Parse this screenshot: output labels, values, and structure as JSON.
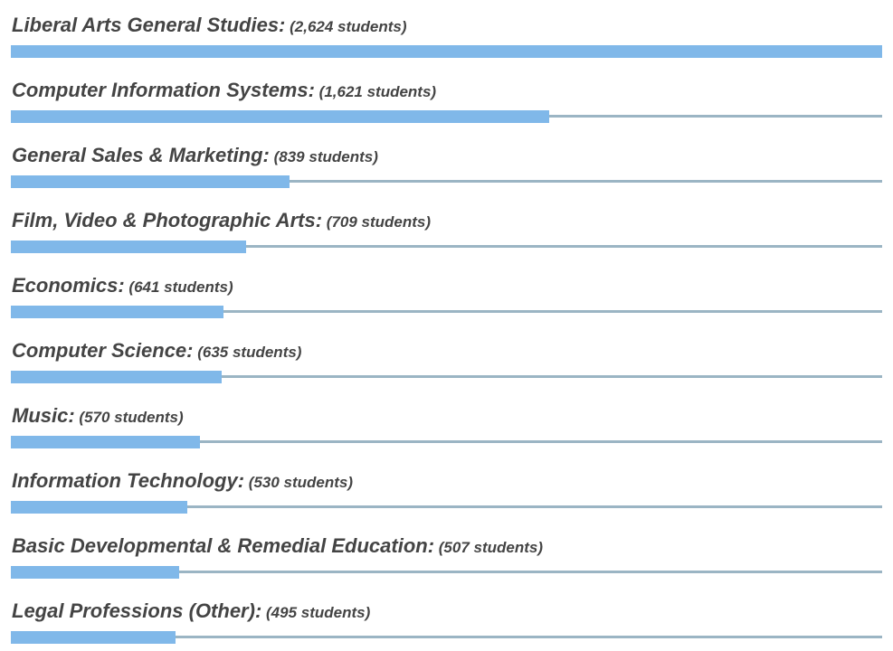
{
  "chart_data": {
    "type": "bar",
    "orientation": "horizontal",
    "count_template": "({value} students)",
    "colors": {
      "bar": "#80b8e9",
      "track": "#9bb5c4",
      "text": "#444444"
    },
    "categories": [
      "Liberal Arts General Studies",
      "Computer Information Systems",
      "General Sales & Marketing",
      "Film, Video & Photographic Arts",
      "Economics",
      "Computer Science",
      "Music",
      "Information Technology",
      "Basic Developmental & Remedial Education",
      "Legal Professions (Other)"
    ],
    "values": [
      2624,
      1621,
      839,
      709,
      641,
      635,
      570,
      530,
      507,
      495
    ]
  }
}
